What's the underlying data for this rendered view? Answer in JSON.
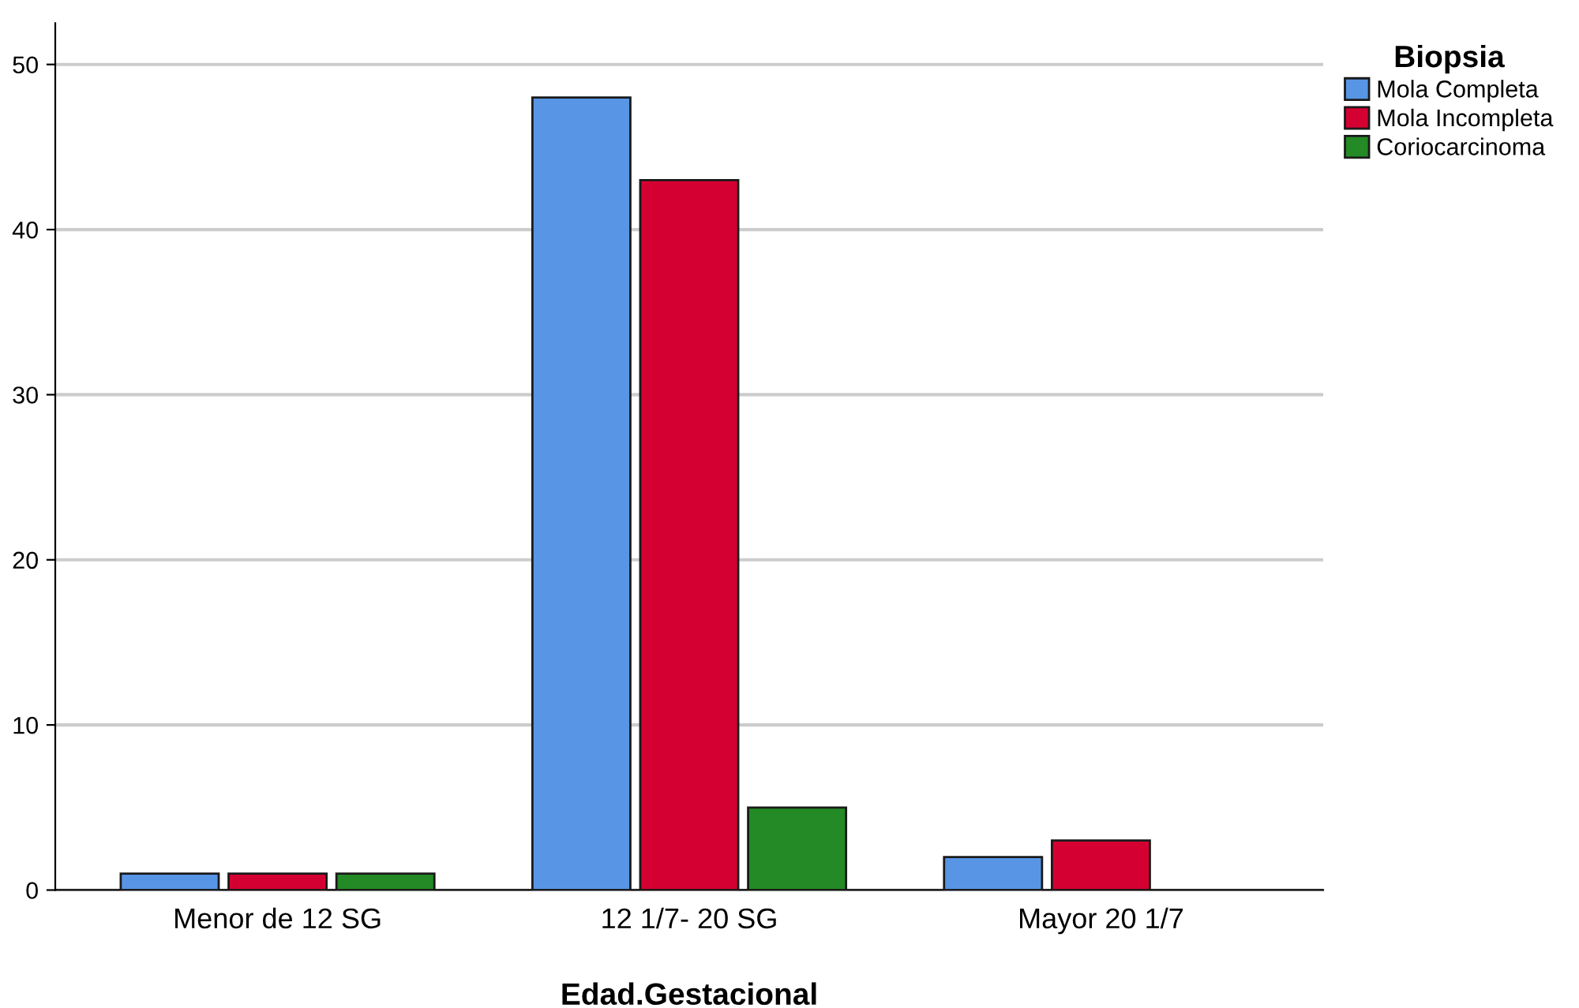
{
  "chart_data": {
    "type": "bar",
    "xlabel": "Edad.Gestacional",
    "legend_title": "Biopsia",
    "categories": [
      "Menor de 12 SG",
      "12 1/7- 20 SG",
      "Mayor 20 1/7"
    ],
    "series": [
      {
        "name": "Mola Completa",
        "color": "#5895e5",
        "values": [
          1,
          48,
          2
        ]
      },
      {
        "name": "Mola Incompleta",
        "color": "#d50032",
        "values": [
          1,
          43,
          3
        ]
      },
      {
        "name": "Coriocarcinoma",
        "color": "#238a25",
        "values": [
          1,
          5,
          null
        ]
      }
    ],
    "ylim": [
      0,
      52.5
    ],
    "yticks": [
      0,
      10,
      20,
      30,
      40,
      50
    ],
    "grid": "y",
    "legend": "top right"
  }
}
